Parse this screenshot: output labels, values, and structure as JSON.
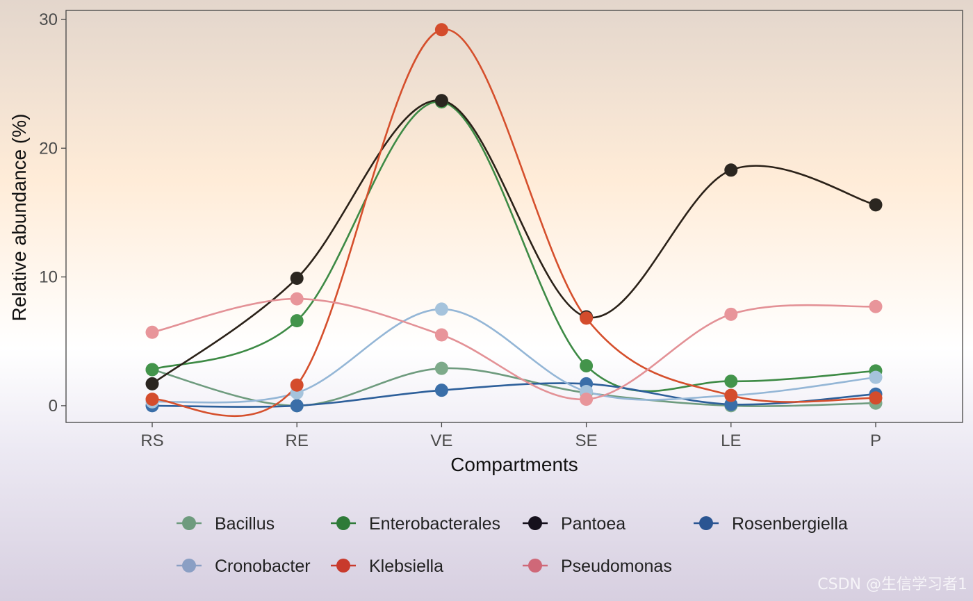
{
  "chart_data": {
    "type": "line",
    "title": "",
    "xlabel": "Compartments",
    "ylabel": "Relative abundance (%)",
    "categories": [
      "RS",
      "RE",
      "VE",
      "SE",
      "LE",
      "P"
    ],
    "ylim": [
      -1.3,
      30.7
    ],
    "yticks": [
      0,
      10,
      20,
      30
    ],
    "legend_position": "bottom",
    "series": [
      {
        "name": "Bacillus",
        "color": "#6e9b7e",
        "point_color": "#7daa8a",
        "values": [
          2.8,
          0.0,
          2.9,
          1.0,
          0.0,
          0.2
        ]
      },
      {
        "name": "Enterobacterales",
        "color": "#3d8a45",
        "point_color": "#43944b",
        "values": [
          2.8,
          6.6,
          23.6,
          3.1,
          1.9,
          2.7
        ]
      },
      {
        "name": "Pantoea",
        "color": "#2a2118",
        "point_color": "#2b2620",
        "values": [
          1.7,
          9.9,
          23.7,
          6.9,
          18.3,
          15.6
        ]
      },
      {
        "name": "Rosenbergiella",
        "color": "#2d5f9a",
        "point_color": "#3a6ea8",
        "values": [
          0.0,
          0.0,
          1.2,
          1.7,
          0.1,
          0.9
        ]
      },
      {
        "name": "Cronobacter",
        "color": "#94b6d6",
        "point_color": "#a5c3dc",
        "values": [
          0.3,
          1.0,
          7.5,
          1.1,
          0.8,
          2.2
        ]
      },
      {
        "name": "Klebsiella",
        "color": "#d54f2c",
        "point_color": "#d44c2c",
        "values": [
          0.5,
          1.6,
          29.2,
          6.8,
          0.8,
          0.6
        ]
      },
      {
        "name": "Pseudomonas",
        "color": "#e39196",
        "point_color": "#e8959a",
        "values": [
          5.7,
          8.3,
          5.5,
          0.5,
          7.1,
          7.7
        ]
      }
    ],
    "legend_items": [
      {
        "name": "Bacillus",
        "color": "#6e9b7e"
      },
      {
        "name": "Enterobacterales",
        "color": "#2e7a38"
      },
      {
        "name": "Pantoea",
        "color": "#15101c"
      },
      {
        "name": "Rosenbergiella",
        "color": "#2a5592"
      },
      {
        "name": "Cronobacter",
        "color": "#8a9fc4"
      },
      {
        "name": "Klebsiella",
        "color": "#c83a2c"
      },
      {
        "name": "Pseudomonas",
        "color": "#cf6878"
      }
    ]
  },
  "watermark": "CSDN @生信学习者1"
}
